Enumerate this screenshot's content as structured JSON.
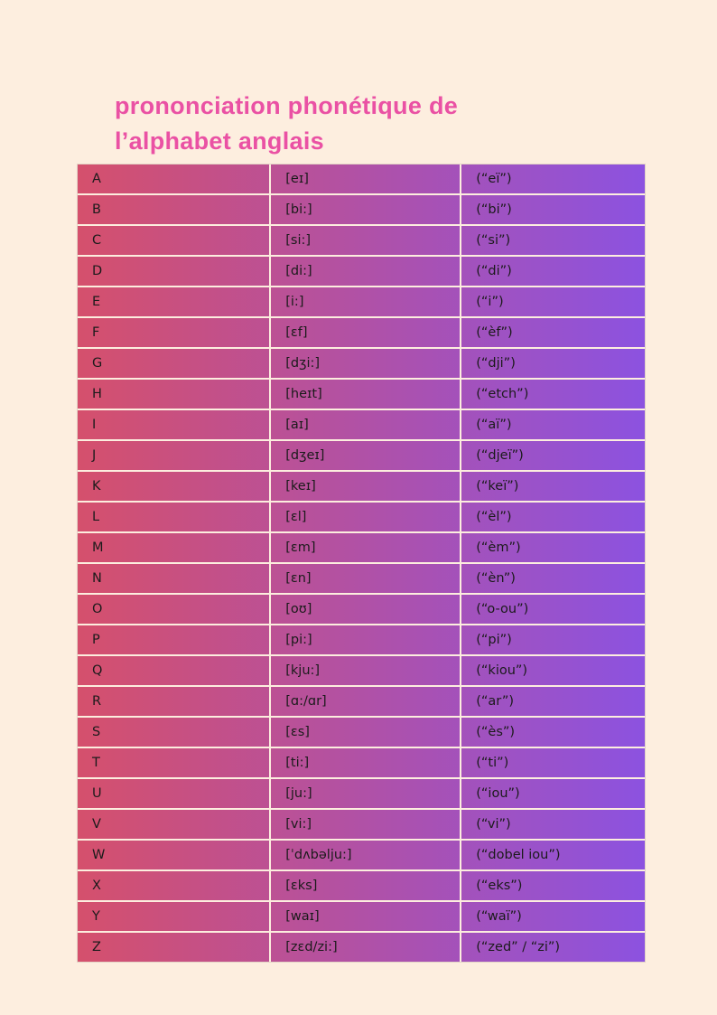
{
  "page": {
    "title_line1": "prononciation phonétique de",
    "title_line2": "l’alphabet anglais"
  },
  "colors": {
    "background": "#fdeedf",
    "title": "#ea51a4",
    "row_gradient_start": "#d5506c",
    "row_gradient_end": "#8c52e0",
    "cell_text": "#1b1b1b"
  },
  "table": {
    "columns": [
      "letter",
      "ipa",
      "approx"
    ],
    "rows": [
      {
        "letter": "A",
        "ipa": "[eɪ]",
        "approx": "(“eï”)"
      },
      {
        "letter": "B",
        "ipa": "[bi:]",
        "approx": "(“bi”)"
      },
      {
        "letter": "C",
        "ipa": "[si:]",
        "approx": "(“si”)"
      },
      {
        "letter": "D",
        "ipa": "[di:]",
        "approx": "(“di”)"
      },
      {
        "letter": "E",
        "ipa": "[i:]",
        "approx": "(“i”)"
      },
      {
        "letter": "F",
        "ipa": "[ɛf]",
        "approx": "(“èf”)"
      },
      {
        "letter": "G",
        "ipa": "[dʒi:]",
        "approx": "(“dji”)"
      },
      {
        "letter": "H",
        "ipa": "[heɪt]",
        "approx": "(“etch”)"
      },
      {
        "letter": "I",
        "ipa": "[aɪ]",
        "approx": "(“aï”)"
      },
      {
        "letter": "J",
        "ipa": "[dʒeɪ]",
        "approx": "(“djeï”)"
      },
      {
        "letter": "K",
        "ipa": "[keɪ]",
        "approx": "(“keï”)"
      },
      {
        "letter": "L",
        "ipa": "[ɛl]",
        "approx": "(“èl”)"
      },
      {
        "letter": "M",
        "ipa": "[ɛm]",
        "approx": "(“èm”)"
      },
      {
        "letter": "N",
        "ipa": "[ɛn]",
        "approx": "(“èn”)"
      },
      {
        "letter": "O",
        "ipa": "[oʊ]",
        "approx": "(“o-ou”)"
      },
      {
        "letter": "P",
        "ipa": "[pi:]",
        "approx": "(“pi”)"
      },
      {
        "letter": "Q",
        "ipa": "[kju:]",
        "approx": "(“kiou”)"
      },
      {
        "letter": "R",
        "ipa": "[ɑ:/ɑr]",
        "approx": "(“ar”)"
      },
      {
        "letter": "S",
        "ipa": "[ɛs]",
        "approx": "(“ès”)"
      },
      {
        "letter": "T",
        "ipa": "[ti:]",
        "approx": "(“ti”)"
      },
      {
        "letter": "U",
        "ipa": "[ju:]",
        "approx": "(“iou”)"
      },
      {
        "letter": "V",
        "ipa": "[vi:]",
        "approx": "(“vi”)"
      },
      {
        "letter": "W",
        "ipa": "[ˈdʌbəlju:]",
        "approx": "(“dobel iou”)"
      },
      {
        "letter": "X",
        "ipa": "[ɛks]",
        "approx": "(“eks”)"
      },
      {
        "letter": "Y",
        "ipa": "[waɪ]",
        "approx": "(“waï”)"
      },
      {
        "letter": "Z",
        "ipa": "[zɛd/zi:]",
        "approx": "(“zed” / “zi”)"
      }
    ]
  }
}
